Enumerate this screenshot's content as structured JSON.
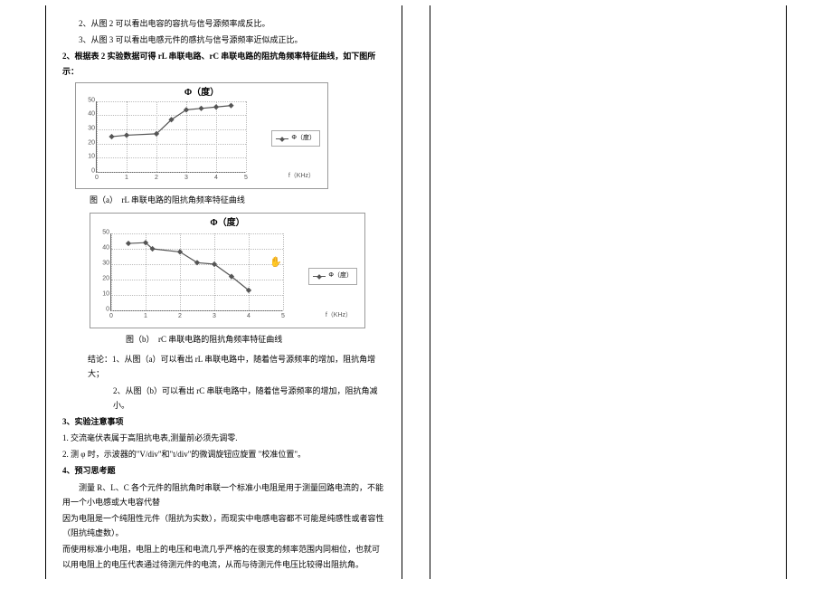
{
  "text": {
    "l1": "2、从图 2 可以看出电容的容抗与信号源频率成反比。",
    "l2": "3、从图 3 可以看出电感元件的感抗与信号源频率近似成正比。",
    "l3": "2、根据表 2 实验数据可得 rL 串联电路、rC 串联电路的阻抗角频率特征曲线，如下图所示：",
    "cap_a": "图（a）　rL 串联电路的阻抗角频率特征曲线",
    "cap_b": "图（b）　rC 串联电路的阻抗角频率特征曲线",
    "concl1": "结论：1、从图（a）可以看出 rL 串联电路中，随着信号源频率的增加，阻抗角增大；",
    "concl2": "2、从图（b）可以看出 rC 串联电路中，随着信号源频率的增加，阻抗角减小。",
    "h3": "3、实验注意事项",
    "n1": "1. 交流毫伏表属于高阻抗电表,测量前必须先调零.",
    "n2": "2. 测 φ 时，示波器的\"V/div\"和\"t/div\"的微调旋钮应旋置 \"校准位置\"。",
    "h4": "4、预习思考题",
    "p1": "测量 R、L、C 各个元件的阻抗角时串联一个标准小电阻是用于测量回路电流的，不能用一个小电感或大电容代替",
    "p2": "因为电阻是一个纯阻性元件（阻抗为实数），而现实中电感电容都不可能是纯感性或者容性（阻抗纯虚数）。",
    "p3": "而使用标准小电阻，电阻上的电压和电流几乎严格的在很宽的频率范围内同相位，也就可以用电阻上的电压代表通过待测元件的电流，从而与待测元件电压比较得出阻抗角。"
  },
  "chartA": {
    "title": "Φ（度）",
    "ylim": [
      0,
      50
    ],
    "ytick": 10,
    "xlim": [
      0,
      5
    ],
    "xtick": 1,
    "x": [
      0.5,
      1,
      2,
      2.5,
      3,
      3.5,
      4,
      4.5
    ],
    "y": [
      25,
      26,
      27,
      37,
      44,
      45,
      46,
      47
    ],
    "legend": "Φ（度）",
    "xlabel": "f（KHz）",
    "line_color": "#555555",
    "grid_color": "#bbbbbb"
  },
  "chartB": {
    "title": "Φ（度）",
    "ylim": [
      0,
      50
    ],
    "ytick": 10,
    "xlim": [
      0,
      5
    ],
    "xtick": 1,
    "x": [
      0.5,
      1,
      1.2,
      2,
      2.5,
      3,
      3.5,
      4
    ],
    "y": [
      43.5,
      44,
      40,
      38,
      31,
      30,
      22,
      13
    ],
    "legend": "Φ（度）",
    "xlabel": "f（KHz）",
    "line_color": "#555555",
    "grid_color": "#bbbbbb"
  }
}
